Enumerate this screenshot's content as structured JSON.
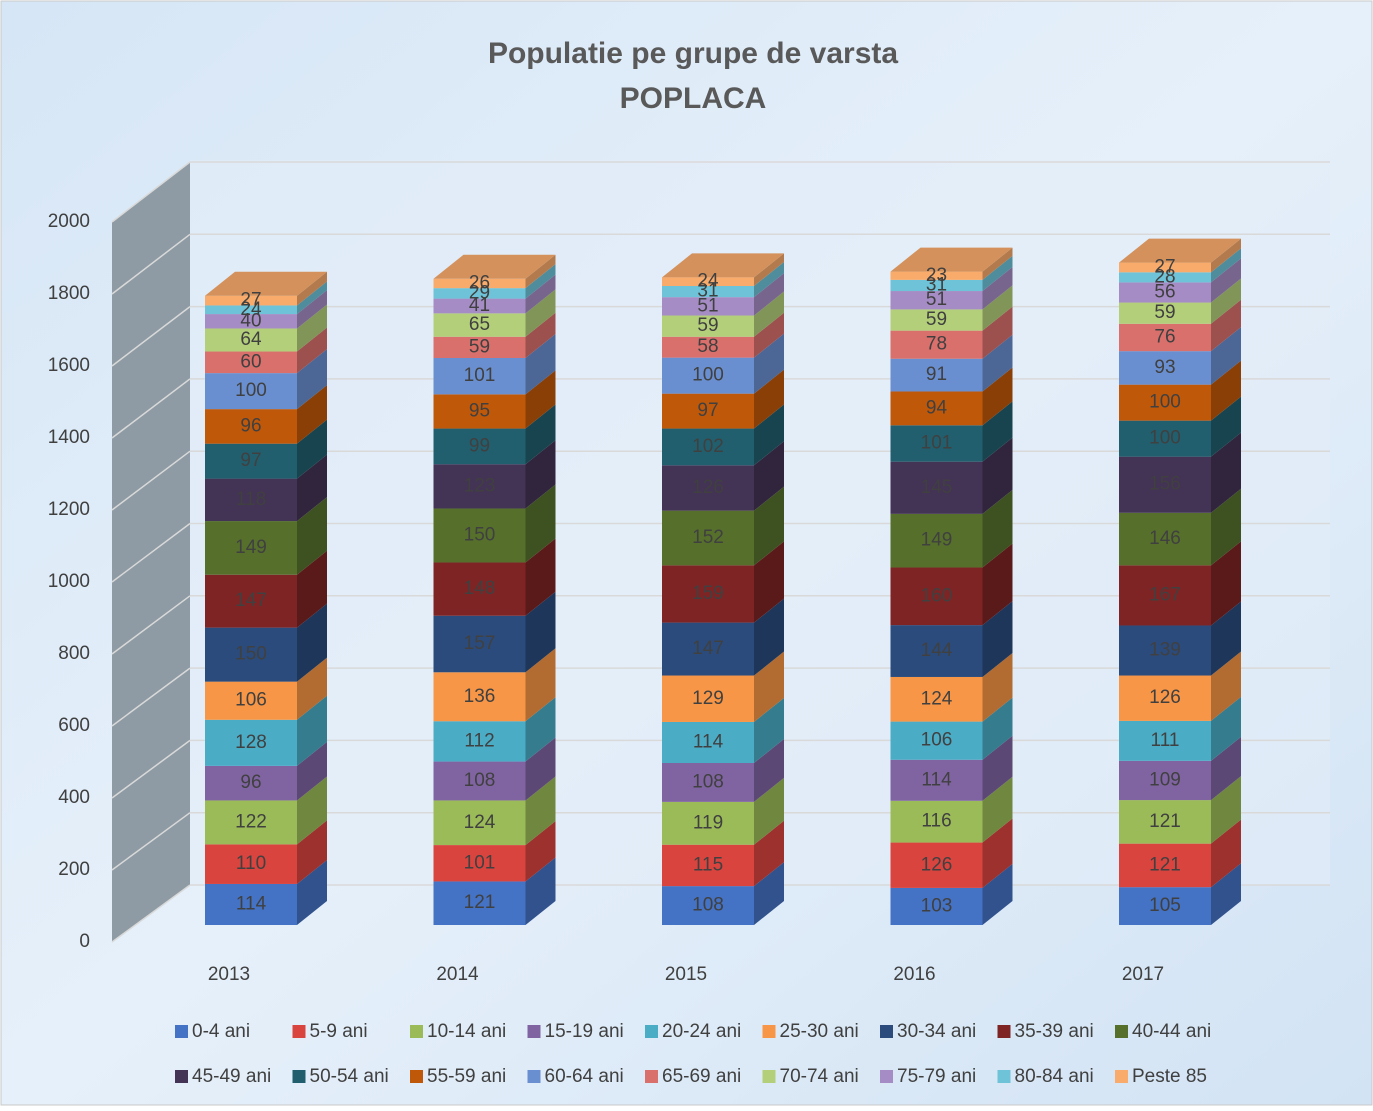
{
  "chart_data": {
    "type": "bar3d_stacked",
    "title": "Populatie pe grupe de varsta",
    "subtitle": "POPLACA",
    "categories": [
      "2013",
      "2014",
      "2015",
      "2016",
      "2017"
    ],
    "ylim": [
      0,
      2000
    ],
    "yticks": [
      0,
      200,
      400,
      600,
      800,
      1000,
      1200,
      1400,
      1600,
      1800,
      2000
    ],
    "grid": true,
    "legend": "bottom",
    "series": [
      {
        "name": "0-4 ani",
        "color": "#4472c4",
        "values": [
          114,
          121,
          108,
          103,
          105
        ]
      },
      {
        "name": "5-9 ani",
        "color": "#d9443f",
        "values": [
          110,
          101,
          115,
          126,
          121
        ]
      },
      {
        "name": "10-14 ani",
        "color": "#9bbb59",
        "values": [
          122,
          124,
          119,
          116,
          121
        ]
      },
      {
        "name": "15-19 ani",
        "color": "#8064a2",
        "values": [
          96,
          108,
          108,
          114,
          109
        ]
      },
      {
        "name": "20-24 ani",
        "color": "#4bacc6",
        "values": [
          128,
          112,
          114,
          106,
          111
        ]
      },
      {
        "name": "25-30 ani",
        "color": "#f79646",
        "values": [
          106,
          136,
          129,
          124,
          126
        ]
      },
      {
        "name": "30-34 ani",
        "color": "#2a4b7c",
        "values": [
          150,
          157,
          147,
          144,
          139
        ]
      },
      {
        "name": "35-39 ani",
        "color": "#7f2424",
        "values": [
          147,
          148,
          159,
          160,
          167
        ]
      },
      {
        "name": "40-44 ani",
        "color": "#56702c",
        "values": [
          149,
          150,
          152,
          149,
          146
        ]
      },
      {
        "name": "45-49 ani",
        "color": "#433355",
        "values": [
          118,
          123,
          126,
          145,
          156
        ]
      },
      {
        "name": "50-54 ani",
        "color": "#215f6e",
        "values": [
          97,
          99,
          102,
          101,
          100
        ]
      },
      {
        "name": "55-59 ani",
        "color": "#c0580a",
        "values": [
          96,
          95,
          97,
          94,
          100
        ]
      },
      {
        "name": "60-64 ani",
        "color": "#6a8fd0",
        "values": [
          100,
          101,
          100,
          91,
          93
        ]
      },
      {
        "name": "65-69 ani",
        "color": "#d9706c",
        "values": [
          60,
          59,
          58,
          78,
          76
        ]
      },
      {
        "name": "70-74 ani",
        "color": "#b3cf7a",
        "values": [
          64,
          65,
          59,
          59,
          59
        ]
      },
      {
        "name": "75-79 ani",
        "color": "#a58cc4",
        "values": [
          40,
          41,
          51,
          51,
          56
        ]
      },
      {
        "name": "80-84 ani",
        "color": "#6ec3d8",
        "values": [
          24,
          29,
          31,
          31,
          28
        ]
      },
      {
        "name": "Peste 85",
        "color": "#f9ab6b",
        "values": [
          27,
          26,
          24,
          23,
          27
        ]
      }
    ]
  }
}
